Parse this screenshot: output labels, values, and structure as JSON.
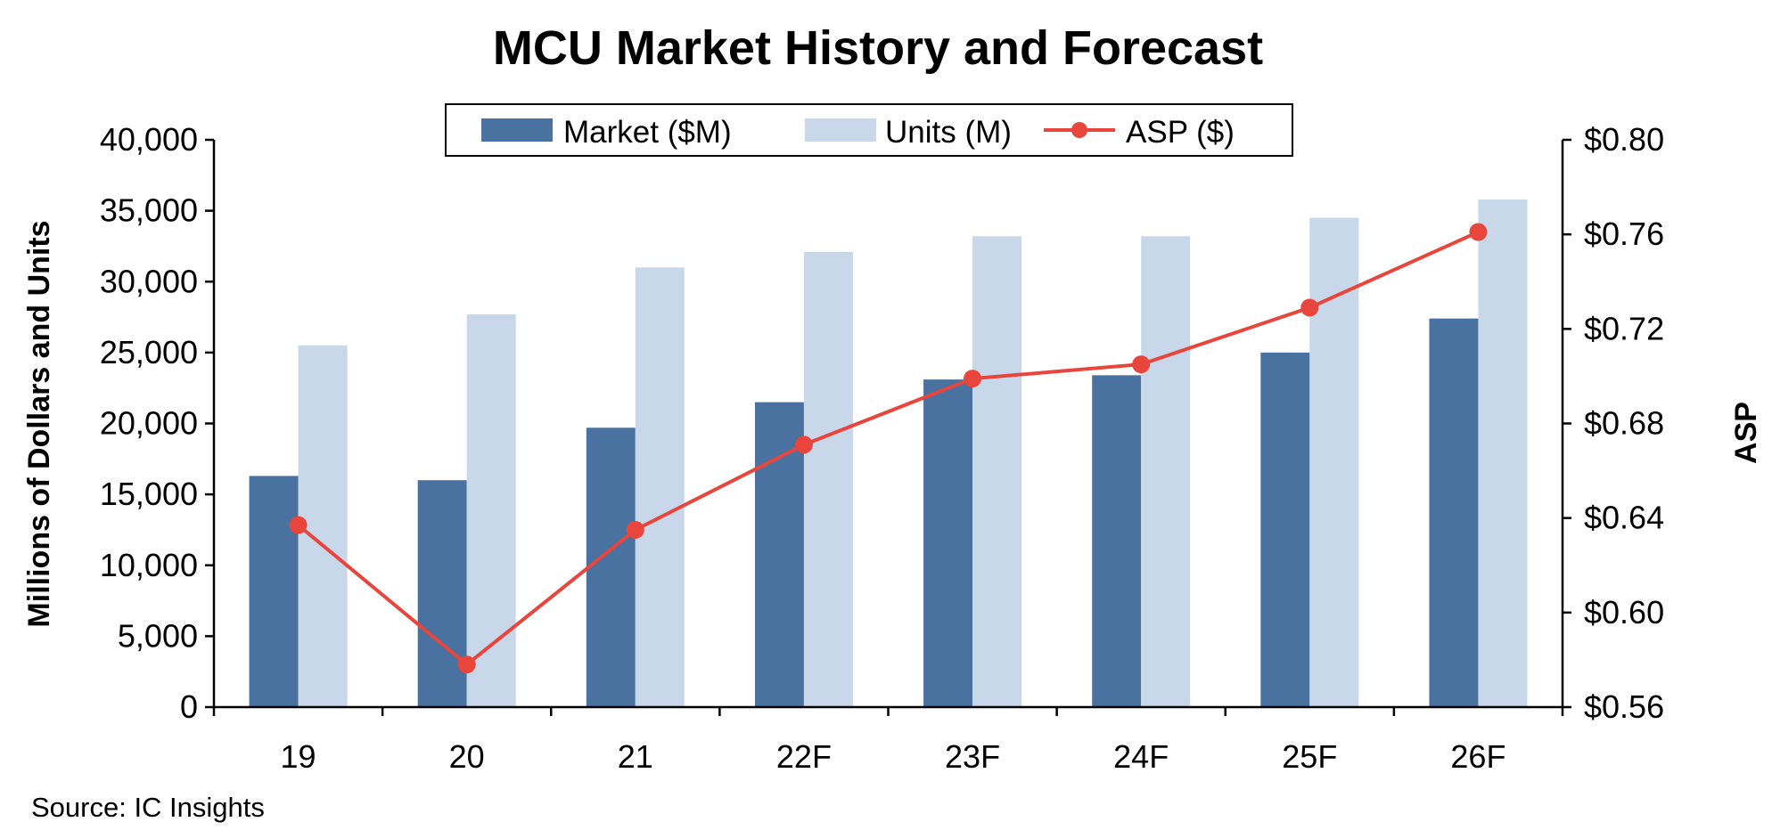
{
  "chart_data": {
    "type": "bar",
    "title": "MCU Market History and Forecast",
    "categories": [
      "19",
      "20",
      "21",
      "22F",
      "23F",
      "24F",
      "25F",
      "26F"
    ],
    "series": [
      {
        "name": "Market ($M)",
        "type": "bar",
        "axis": "left",
        "color": "#4a72a0",
        "values": [
          16300,
          16000,
          19700,
          21500,
          23100,
          23400,
          25000,
          27400
        ]
      },
      {
        "name": "Units (M)",
        "type": "bar",
        "axis": "left",
        "color": "#c9d7ea",
        "values": [
          25500,
          27700,
          31000,
          32100,
          33200,
          33200,
          34500,
          35800
        ]
      },
      {
        "name": "ASP ($)",
        "type": "line",
        "axis": "right",
        "color": "#e8453c",
        "values": [
          0.637,
          0.578,
          0.635,
          0.671,
          0.699,
          0.705,
          0.729,
          0.761
        ]
      }
    ],
    "ylabel": "Millions of Dollars and Units",
    "ylabel_right": "ASP",
    "ylim": [
      0,
      40000
    ],
    "ylim_right": [
      0.56,
      0.8
    ],
    "yticks": [
      "0",
      "5,000",
      "10,000",
      "15,000",
      "20,000",
      "25,000",
      "30,000",
      "35,000",
      "40,000"
    ],
    "yticks_right": [
      "$0.56",
      "$0.60",
      "$0.64",
      "$0.68",
      "$0.72",
      "$0.76",
      "$0.80"
    ],
    "legend_position": "top-center",
    "grid": false,
    "source": "Source:  IC Insights"
  }
}
